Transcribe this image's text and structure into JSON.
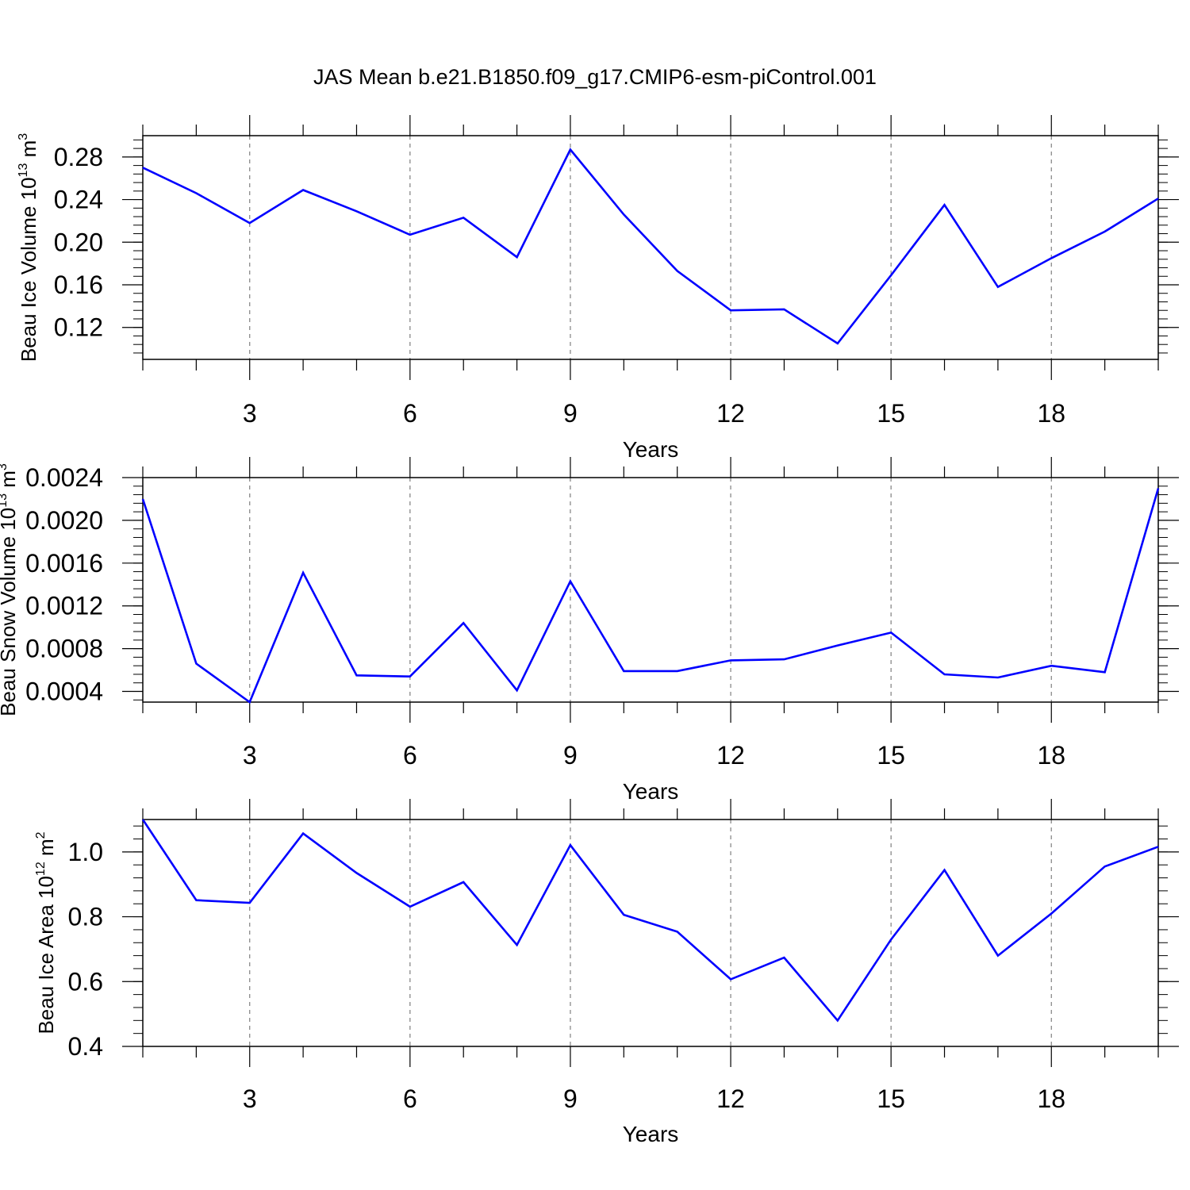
{
  "title": "JAS Mean b.e21.B1850.f09_g17.CMIP6-esm-piControl.001",
  "colors": {
    "series": "#0000ff",
    "frame": "#000000",
    "grid": "#808080"
  },
  "chart_data": [
    {
      "type": "line",
      "name": "ice-volume",
      "ylabel": {
        "main": "Beau Ice Volume 10",
        "sup": "13",
        "unit": " m",
        "unit_sup": "3"
      },
      "xlabel": "Years",
      "xlim": [
        1,
        20
      ],
      "ylim": [
        0.09,
        0.3
      ],
      "x_ticks": [
        3,
        6,
        9,
        12,
        15,
        18
      ],
      "x_tick_labels": [
        "3",
        "6",
        "9",
        "12",
        "15",
        "18"
      ],
      "y_ticks": [
        0.12,
        0.16,
        0.2,
        0.24,
        0.28
      ],
      "y_tick_labels": [
        "0.12",
        "0.16",
        "0.20",
        "0.24",
        "0.28"
      ],
      "y_minor_step": 0.008,
      "grid": "x-dashed",
      "x": [
        1,
        2,
        3,
        4,
        5,
        6,
        7,
        8,
        9,
        10,
        11,
        12,
        13,
        14,
        15,
        16,
        17,
        18,
        19,
        20
      ],
      "values": [
        0.27,
        0.246,
        0.218,
        0.249,
        0.229,
        0.207,
        0.223,
        0.186,
        0.287,
        0.226,
        0.173,
        0.136,
        0.137,
        0.105,
        0.169,
        0.235,
        0.158,
        0.185,
        0.21,
        0.241
      ]
    },
    {
      "type": "line",
      "name": "snow-volume",
      "ylabel": {
        "main": "Beau Snow Volume 10",
        "sup": "13",
        "unit": " m",
        "unit_sup": "3"
      },
      "xlabel": "Years",
      "xlim": [
        1,
        20
      ],
      "ylim": [
        0.0003,
        0.0024
      ],
      "x_ticks": [
        3,
        6,
        9,
        12,
        15,
        18
      ],
      "x_tick_labels": [
        "3",
        "6",
        "9",
        "12",
        "15",
        "18"
      ],
      "y_ticks": [
        0.0004,
        0.0008,
        0.0012,
        0.0016,
        0.002,
        0.0024
      ],
      "y_tick_labels": [
        "0.0004",
        "0.0008",
        "0.0012",
        "0.0016",
        "0.0020",
        "0.0024"
      ],
      "y_minor_step": 8e-05,
      "grid": "x-dashed",
      "x": [
        1,
        2,
        3,
        4,
        5,
        6,
        7,
        8,
        9,
        10,
        11,
        12,
        13,
        14,
        15,
        16,
        17,
        18,
        19,
        20
      ],
      "values": [
        0.0022,
        0.00066,
        0.0003,
        0.00151,
        0.00055,
        0.00054,
        0.00104,
        0.00041,
        0.00143,
        0.00059,
        0.00059,
        0.00069,
        0.0007,
        0.00083,
        0.00095,
        0.00056,
        0.00053,
        0.00064,
        0.00058,
        0.0023
      ]
    },
    {
      "type": "line",
      "name": "ice-area",
      "ylabel": {
        "main": "Beau Ice Area 10",
        "sup": "12",
        "unit": " m",
        "unit_sup": "2"
      },
      "xlabel": "Years",
      "xlim": [
        1,
        20
      ],
      "ylim": [
        0.4,
        1.1
      ],
      "x_ticks": [
        3,
        6,
        9,
        12,
        15,
        18
      ],
      "x_tick_labels": [
        "3",
        "6",
        "9",
        "12",
        "15",
        "18"
      ],
      "y_ticks": [
        0.4,
        0.6,
        0.8,
        1.0
      ],
      "y_tick_labels": [
        "0.4",
        "0.6",
        "0.8",
        "1.0"
      ],
      "y_minor_step": 0.04,
      "grid": "x-dashed",
      "x": [
        1,
        2,
        3,
        4,
        5,
        6,
        7,
        8,
        9,
        10,
        11,
        12,
        13,
        14,
        15,
        16,
        17,
        18,
        19,
        20
      ],
      "values": [
        1.1,
        0.851,
        0.843,
        1.057,
        0.935,
        0.831,
        0.907,
        0.713,
        1.021,
        0.806,
        0.754,
        0.607,
        0.674,
        0.48,
        0.73,
        0.944,
        0.68,
        0.81,
        0.955,
        1.016
      ]
    }
  ]
}
